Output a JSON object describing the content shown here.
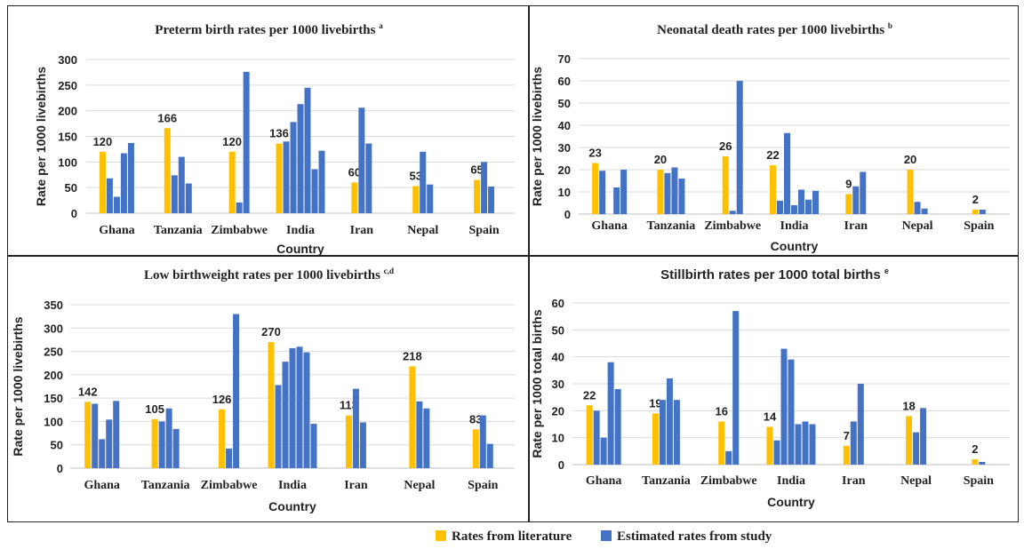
{
  "colors": {
    "literature": "#FFC000",
    "study": "#4472C4",
    "grid": "#d9d9d9",
    "axis": "#bfbfbf"
  },
  "legend": {
    "literature_label": "Rates from literature",
    "study_label": "Estimated rates from study"
  },
  "chart_data": [
    {
      "type": "bar",
      "title": "Preterm birth rates per 1000 livebirths",
      "title_superscript": "a",
      "xlabel": "Country",
      "ylabel": "Rate per 1000 livebirths",
      "ylim": [
        0,
        300
      ],
      "yticks": [
        0,
        50,
        100,
        150,
        200,
        250,
        300
      ],
      "grid": true,
      "groups": [
        {
          "country": "Ghana",
          "literature": 120,
          "literature_label": "120",
          "study": [
            68,
            32,
            117,
            137
          ]
        },
        {
          "country": "Tanzania",
          "literature": 166,
          "literature_label": "166",
          "study": [
            74,
            110,
            58
          ]
        },
        {
          "country": "Zimbabwe",
          "literature": 120,
          "literature_label": "120",
          "study": [
            21,
            276
          ]
        },
        {
          "country": "India",
          "literature": 136,
          "literature_label": "136",
          "study": [
            140,
            178,
            213,
            245,
            86,
            122
          ]
        },
        {
          "country": "Iran",
          "literature": 60,
          "literature_label": "60",
          "study": [
            206,
            136
          ]
        },
        {
          "country": "Nepal",
          "literature": 53,
          "literature_label": "53",
          "study": [
            120,
            56
          ]
        },
        {
          "country": "Spain",
          "literature": 65,
          "literature_label": "65",
          "study": [
            100,
            52
          ]
        }
      ]
    },
    {
      "type": "bar",
      "title": "Neonatal death rates per 1000 livebirths",
      "title_superscript": "b",
      "xlabel": "Country",
      "ylabel": "Rate per 1000 livebirths",
      "ylim": [
        0,
        70
      ],
      "yticks": [
        0,
        10,
        20,
        30,
        40,
        50,
        60,
        70
      ],
      "grid": true,
      "groups": [
        {
          "country": "Ghana",
          "literature": 23,
          "literature_label": "23",
          "study": [
            19.5,
            0,
            12,
            20
          ]
        },
        {
          "country": "Tanzania",
          "literature": 20,
          "literature_label": "20",
          "study": [
            18.5,
            21,
            16
          ]
        },
        {
          "country": "Zimbabwe",
          "literature": 26,
          "literature_label": "26",
          "study": [
            1.5,
            60
          ]
        },
        {
          "country": "India",
          "literature": 22,
          "literature_label": "22",
          "study": [
            6,
            36.5,
            4,
            11,
            6.5,
            10.5
          ]
        },
        {
          "country": "Iran",
          "literature": 9,
          "literature_label": "9",
          "study": [
            12.5,
            19
          ]
        },
        {
          "country": "Nepal",
          "literature": 20,
          "literature_label": "20",
          "study": [
            5.5,
            2.5
          ]
        },
        {
          "country": "Spain",
          "literature": 2,
          "literature_label": "2",
          "study": [
            2
          ]
        }
      ]
    },
    {
      "type": "bar",
      "title": "Low birthweight rates per 1000 livebirths",
      "title_superscript": "c,d",
      "xlabel": "Country",
      "ylabel": "Rate per 1000 livebirths",
      "ylim": [
        0,
        350
      ],
      "yticks": [
        0,
        50,
        100,
        150,
        200,
        250,
        300,
        350
      ],
      "grid": true,
      "groups": [
        {
          "country": "Ghana",
          "literature": 142,
          "literature_label": "142",
          "study": [
            138,
            62,
            104,
            144
          ]
        },
        {
          "country": "Tanzania",
          "literature": 105,
          "literature_label": "105",
          "study": [
            100,
            128,
            84
          ]
        },
        {
          "country": "Zimbabwe",
          "literature": 126,
          "literature_label": "126",
          "study": [
            42,
            330
          ]
        },
        {
          "country": "India",
          "literature": 270,
          "literature_label": "270",
          "study": [
            178,
            228,
            257,
            260,
            248,
            95
          ]
        },
        {
          "country": "Iran",
          "literature": 113,
          "literature_label": "113",
          "study": [
            170,
            98
          ]
        },
        {
          "country": "Nepal",
          "literature": 218,
          "literature_label": "218",
          "study": [
            143,
            128
          ]
        },
        {
          "country": "Spain",
          "literature": 83,
          "literature_label": "83",
          "study": [
            113,
            52
          ]
        }
      ]
    },
    {
      "type": "bar",
      "title": "Stillbirth rates per 1000 total births",
      "title_superscript": "e",
      "xlabel": "Country",
      "ylabel": "Rate per 1000 total births",
      "ylim": [
        0,
        60
      ],
      "yticks": [
        0,
        10,
        20,
        30,
        40,
        50,
        60
      ],
      "grid": true,
      "groups": [
        {
          "country": "Ghana",
          "literature": 22,
          "literature_label": "22",
          "study": [
            20,
            10,
            38,
            28
          ]
        },
        {
          "country": "Tanzania",
          "literature": 19,
          "literature_label": "19",
          "study": [
            24,
            32,
            24
          ]
        },
        {
          "country": "Zimbabwe",
          "literature": 16,
          "literature_label": "16",
          "study": [
            5,
            57
          ]
        },
        {
          "country": "India",
          "literature": 14,
          "literature_label": "14",
          "study": [
            9,
            43,
            39,
            15,
            16,
            15
          ]
        },
        {
          "country": "Iran",
          "literature": 7,
          "literature_label": "7",
          "study": [
            16,
            30
          ]
        },
        {
          "country": "Nepal",
          "literature": 18,
          "literature_label": "18",
          "study": [
            12,
            21
          ]
        },
        {
          "country": "Spain",
          "literature": 2,
          "literature_label": "2",
          "study": [
            1
          ]
        }
      ]
    }
  ]
}
